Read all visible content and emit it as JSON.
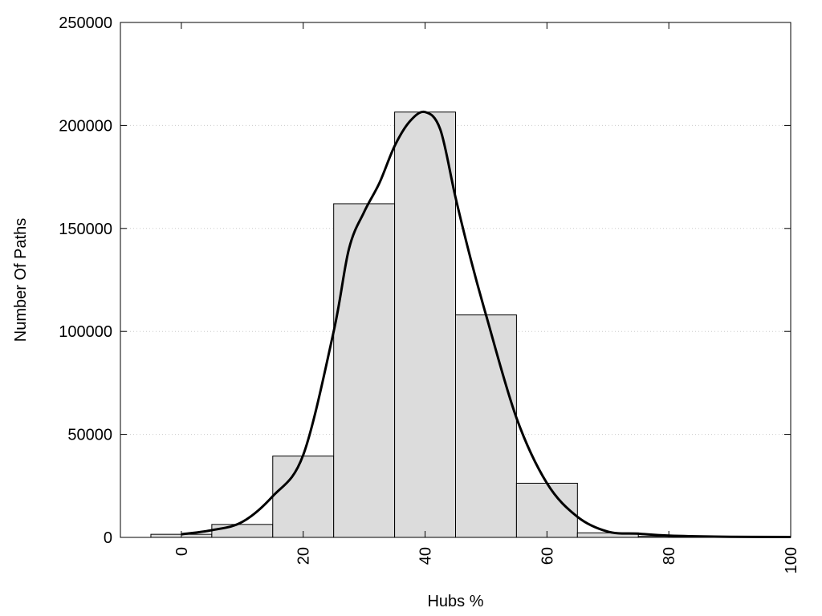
{
  "chart_data": {
    "type": "bar",
    "title": "",
    "xlabel": "Hubs %",
    "ylabel": "Number Of Paths",
    "xlim": [
      -10,
      100
    ],
    "ylim": [
      0,
      250000
    ],
    "xticks": [
      "0",
      "20",
      "40",
      "60",
      "80",
      "100"
    ],
    "xtick_values": [
      0,
      20,
      40,
      60,
      80,
      100
    ],
    "yticks": [
      "0",
      "50000",
      "100000",
      "150000",
      "200000",
      "250000"
    ],
    "ytick_values": [
      0,
      50000,
      100000,
      150000,
      200000,
      250000
    ],
    "bin_width": 10,
    "bins": [
      {
        "x": 0,
        "value": 1500
      },
      {
        "x": 10,
        "value": 6300
      },
      {
        "x": 20,
        "value": 39500
      },
      {
        "x": 30,
        "value": 162000
      },
      {
        "x": 40,
        "value": 206500
      },
      {
        "x": 50,
        "value": 108000
      },
      {
        "x": 60,
        "value": 26300
      },
      {
        "x": 70,
        "value": 2200
      },
      {
        "x": 80,
        "value": 500
      },
      {
        "x": 90,
        "value": 200
      }
    ],
    "curve": [
      {
        "x": 0,
        "y": 1500
      },
      {
        "x": 5,
        "y": 3500
      },
      {
        "x": 10,
        "y": 7500
      },
      {
        "x": 15,
        "y": 20000
      },
      {
        "x": 20,
        "y": 40000
      },
      {
        "x": 25,
        "y": 100000
      },
      {
        "x": 27.5,
        "y": 140000
      },
      {
        "x": 30,
        "y": 158000
      },
      {
        "x": 32.5,
        "y": 172000
      },
      {
        "x": 35,
        "y": 190000
      },
      {
        "x": 37.5,
        "y": 202000
      },
      {
        "x": 40,
        "y": 206500
      },
      {
        "x": 42.5,
        "y": 198000
      },
      {
        "x": 45,
        "y": 165000
      },
      {
        "x": 47.5,
        "y": 135000
      },
      {
        "x": 50,
        "y": 108000
      },
      {
        "x": 55,
        "y": 58000
      },
      {
        "x": 60,
        "y": 26300
      },
      {
        "x": 65,
        "y": 10000
      },
      {
        "x": 70,
        "y": 2800
      },
      {
        "x": 75,
        "y": 1800
      },
      {
        "x": 80,
        "y": 900
      },
      {
        "x": 90,
        "y": 300
      },
      {
        "x": 100,
        "y": 200
      }
    ],
    "grid": "horizontal-dotted",
    "colors": {
      "bar_fill": "#dcdcdc",
      "bar_stroke": "#000000",
      "curve": "#000000",
      "grid": "#cccccc"
    }
  }
}
